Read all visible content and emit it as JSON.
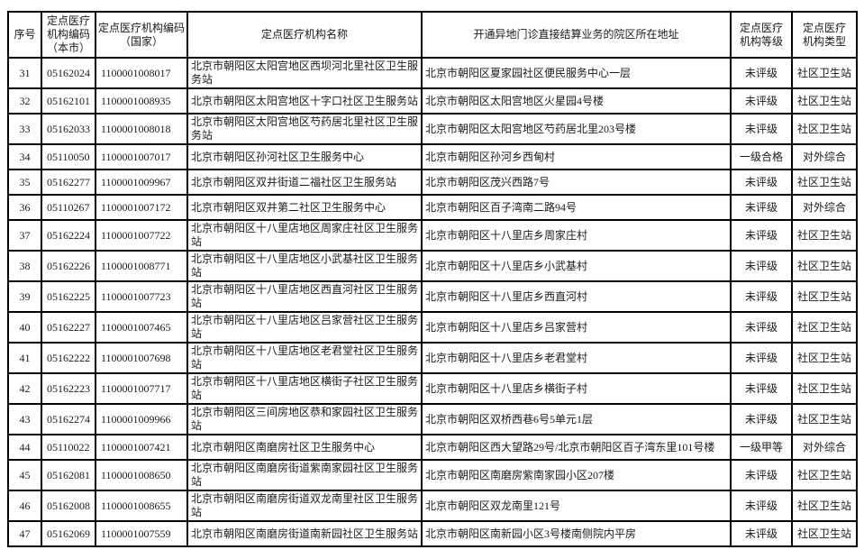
{
  "page": {
    "background_color": "#ffffff",
    "text_color": "#1a1a1a",
    "border_color": "#000000"
  },
  "table": {
    "columns": [
      {
        "id": "index",
        "label": "序号"
      },
      {
        "id": "code_city",
        "label": "定点医疗\n机构编码\n（本市）"
      },
      {
        "id": "code_national",
        "label": "定点医疗机构编码\n（国家）"
      },
      {
        "id": "name",
        "label": "定点医疗机构名称"
      },
      {
        "id": "address",
        "label": "开通异地门诊直接结算业务的院区所在地址"
      },
      {
        "id": "grade",
        "label": "定点医疗\n机构等级"
      },
      {
        "id": "type",
        "label": "定点医疗\n机构类型"
      }
    ],
    "rows": [
      {
        "index": "31",
        "code_city": "05162024",
        "code_national": "1100001008017",
        "name": "北京市朝阳区太阳宫地区西坝河北里社区卫生服务站",
        "address": "北京市朝阳区夏家园社区便民服务中心一层",
        "grade": "未评级",
        "type": "社区卫生站"
      },
      {
        "index": "32",
        "code_city": "05162101",
        "code_national": "1100001008935",
        "name": "北京市朝阳区太阳宫地区十字口社区卫生服务站",
        "address": "北京市朝阳区太阳宫地区火星园4号楼",
        "grade": "未评级",
        "type": "社区卫生站"
      },
      {
        "index": "33",
        "code_city": "05162033",
        "code_national": "1100001008018",
        "name": "北京市朝阳区太阳宫地区芍药居北里社区卫生服务站",
        "address": "北京市朝阳区太阳宫地区芍药居北里203号楼",
        "grade": "未评级",
        "type": "社区卫生站"
      },
      {
        "index": "34",
        "code_city": "05110050",
        "code_national": "1100001007017",
        "name": "北京市朝阳区孙河社区卫生服务中心",
        "address": "北京市朝阳区孙河乡西甸村",
        "grade": "一级合格",
        "type": "对外综合"
      },
      {
        "index": "35",
        "code_city": "05162277",
        "code_national": "1100001009967",
        "name": "北京市朝阳区双井街道二福社区卫生服务站",
        "address": "北京市朝阳区茂兴西路7号",
        "grade": "未评级",
        "type": "社区卫生站"
      },
      {
        "index": "36",
        "code_city": "05110267",
        "code_national": "1100001007172",
        "name": "北京市朝阳区双井第二社区卫生服务中心",
        "address": "北京市朝阳区百子湾南二路94号",
        "grade": "未评级",
        "type": "对外综合"
      },
      {
        "index": "37",
        "code_city": "05162224",
        "code_national": "1100001007722",
        "name": "北京市朝阳区十八里店地区周家庄社区卫生服务站",
        "address": "北京市朝阳区十八里店乡周家庄村",
        "grade": "未评级",
        "type": "社区卫生站"
      },
      {
        "index": "38",
        "code_city": "05162226",
        "code_national": "1100001008771",
        "name": "北京市朝阳区十八里店地区小武基社区卫生服务站",
        "address": "北京市朝阳区十八里店乡小武基村",
        "grade": "未评级",
        "type": "社区卫生站"
      },
      {
        "index": "39",
        "code_city": "05162225",
        "code_national": "1100001007723",
        "name": "北京市朝阳区十八里店地区西直河社区卫生服务站",
        "address": "北京市朝阳区十八里店乡西直河村",
        "grade": "未评级",
        "type": "社区卫生站"
      },
      {
        "index": "40",
        "code_city": "05162227",
        "code_national": "1100001007465",
        "name": "北京市朝阳区十八里店地区吕家营社区卫生服务站",
        "address": "北京市朝阳区十八里店乡吕家营村",
        "grade": "未评级",
        "type": "社区卫生站"
      },
      {
        "index": "41",
        "code_city": "05162222",
        "code_national": "1100001007698",
        "name": "北京市朝阳区十八里店地区老君堂社区卫生服务站",
        "address": "北京市朝阳区十八里店乡老君堂村",
        "grade": "未评级",
        "type": "社区卫生站"
      },
      {
        "index": "42",
        "code_city": "05162223",
        "code_national": "1100001007717",
        "name": "北京市朝阳区十八里店地区横街子社区卫生服务站",
        "address": "北京市朝阳区十八里店乡横街子村",
        "grade": "未评级",
        "type": "社区卫生站"
      },
      {
        "index": "43",
        "code_city": "05162274",
        "code_national": "1100001009966",
        "name": "北京市朝阳区三间房地区恭和家园社区卫生服务站",
        "address": "北京市朝阳区双桥西巷6号5单元1层",
        "grade": "未评级",
        "type": "社区卫生站"
      },
      {
        "index": "44",
        "code_city": "05110022",
        "code_national": "1100001007421",
        "name": "北京市朝阳区南磨房社区卫生服务中心",
        "address": "北京市朝阳区西大望路29号/北京市朝阳区百子湾东里101号楼",
        "grade": "一级甲等",
        "type": "对外综合"
      },
      {
        "index": "45",
        "code_city": "05162081",
        "code_national": "1100001008650",
        "name": "北京市朝阳区南磨房街道紫南家园社区卫生服务站",
        "address": "北京市朝阳区南磨房紫南家园小区207楼",
        "grade": "未评级",
        "type": "社区卫生站"
      },
      {
        "index": "46",
        "code_city": "05162008",
        "code_national": "1100001008655",
        "name": "北京市朝阳区南磨房街道双龙南里社区卫生服务站",
        "address": "北京市朝阳区双龙南里121号",
        "grade": "未评级",
        "type": "社区卫生站"
      },
      {
        "index": "47",
        "code_city": "05162069",
        "code_national": "1100001007559",
        "name": "北京市朝阳区南磨房街道南新园社区卫生服务站",
        "address": "北京市朝阳区南新园小区3号楼南侧院内平房",
        "grade": "未评级",
        "type": "社区卫生站"
      }
    ]
  }
}
